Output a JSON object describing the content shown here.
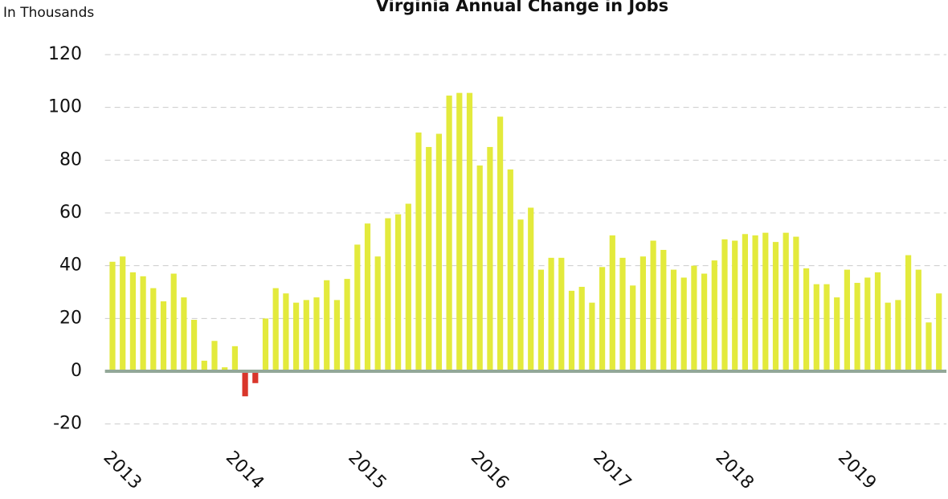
{
  "chart_data": {
    "type": "bar",
    "title": "Virginia Annual Change in Jobs",
    "y_label": "In Thousands",
    "categories": [
      "2013",
      null,
      null,
      null,
      null,
      null,
      null,
      null,
      null,
      null,
      null,
      null,
      "2014",
      null,
      null,
      null,
      null,
      null,
      null,
      null,
      null,
      null,
      null,
      null,
      "2015",
      null,
      null,
      null,
      null,
      null,
      null,
      null,
      null,
      null,
      null,
      null,
      "2016",
      null,
      null,
      null,
      null,
      null,
      null,
      null,
      null,
      null,
      null,
      null,
      "2017",
      null,
      null,
      null,
      null,
      null,
      null,
      null,
      null,
      null,
      null,
      null,
      "2018",
      null,
      null,
      null,
      null,
      null,
      null,
      null,
      null,
      null,
      null,
      null,
      "2019",
      null,
      null,
      null,
      null,
      null,
      null,
      null,
      null,
      null
    ],
    "values": [
      41.5,
      43.5,
      37.5,
      36,
      31.5,
      26.5,
      37,
      28,
      19.5,
      4,
      11.5,
      1.5,
      9.5,
      -9.5,
      -4.5,
      20,
      31.5,
      29.5,
      26,
      27,
      28,
      34.5,
      27,
      35,
      48,
      56,
      43.5,
      58,
      59.5,
      63.5,
      90.5,
      85,
      90,
      104.5,
      105.5,
      105.5,
      78,
      85,
      96.5,
      76.5,
      57.5,
      62,
      38.5,
      43,
      43,
      30.5,
      32,
      26,
      39.5,
      51.5,
      43,
      32.5,
      43.5,
      49.5,
      46,
      38.5,
      35.5,
      40,
      37,
      42,
      50,
      49.5,
      52,
      51.5,
      52.5,
      49,
      52.5,
      51,
      39,
      33,
      33,
      28,
      38.5,
      33.5,
      35.5,
      37.5,
      26,
      27,
      44,
      38.5,
      18.5,
      29.5
    ],
    "color": "#e3ea3c",
    "negative_color": "#d9362b",
    "ylim": [
      -25,
      125
    ],
    "yticks": [
      -20,
      0,
      20,
      40,
      60,
      80,
      100,
      120
    ],
    "grid": true
  }
}
